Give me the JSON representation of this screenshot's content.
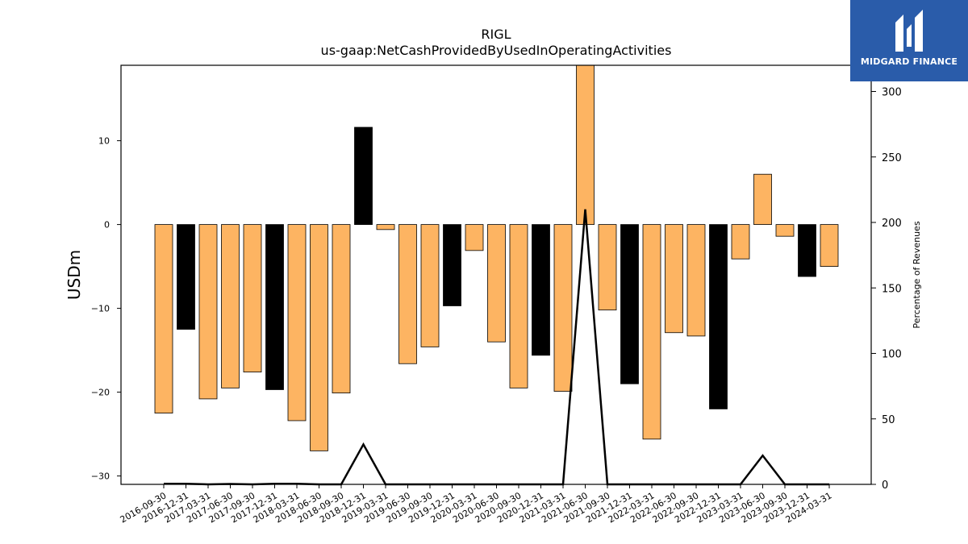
{
  "chart_data": {
    "type": "bar",
    "title": "RIGL",
    "subtitle": "us-gaap:NetCashProvidedByUsedInOperatingActivities",
    "ylabel": "USDm",
    "y2label": "Percentage of Revenues",
    "ylim": [
      -31,
      19
    ],
    "y2lim": [
      0,
      320
    ],
    "yticks": [
      -30,
      -20,
      -10,
      0,
      10
    ],
    "y2ticks": [
      0,
      50,
      100,
      150,
      200,
      250,
      300
    ],
    "categories": [
      "2016-09-30",
      "2016-12-31",
      "2017-03-31",
      "2017-06-30",
      "2017-09-30",
      "2017-12-31",
      "2018-03-31",
      "2018-06-30",
      "2018-09-30",
      "2018-12-31",
      "2019-03-31",
      "2019-06-30",
      "2019-09-30",
      "2019-12-31",
      "2020-03-31",
      "2020-06-30",
      "2020-09-30",
      "2020-12-31",
      "2021-03-31",
      "2021-06-30",
      "2021-09-30",
      "2021-12-31",
      "2022-03-31",
      "2022-06-30",
      "2022-09-30",
      "2022-12-31",
      "2023-03-31",
      "2023-06-30",
      "2023-09-30",
      "2023-12-31",
      "2024-03-31"
    ],
    "values": [
      -22.5,
      -12.5,
      -20.8,
      -19.5,
      -17.6,
      -19.7,
      -23.4,
      -27.0,
      -20.1,
      11.6,
      -0.6,
      -16.6,
      -14.6,
      -9.7,
      -3.1,
      -14.0,
      -19.5,
      -15.6,
      -19.9,
      19.5,
      -10.2,
      -19.0,
      -25.6,
      -12.9,
      -13.3,
      -22.0,
      -4.1,
      6.0,
      -1.4,
      -6.2,
      -5.0
    ],
    "bar_colors": [
      "#fdb462",
      "#000000",
      "#fdb462",
      "#fdb462",
      "#fdb462",
      "#000000",
      "#fdb462",
      "#fdb462",
      "#fdb462",
      "#000000",
      "#fdb462",
      "#fdb462",
      "#fdb462",
      "#000000",
      "#fdb462",
      "#fdb462",
      "#fdb462",
      "#000000",
      "#fdb462",
      "#fdb462",
      "#fdb462",
      "#000000",
      "#fdb462",
      "#fdb462",
      "#fdb462",
      "#000000",
      "#fdb462",
      "#fdb462",
      "#fdb462",
      "#000000",
      "#fdb462"
    ],
    "pct_of_revenues": [
      0.5,
      0.5,
      0,
      0.3,
      0,
      0.5,
      0.5,
      0,
      0,
      30.5,
      0,
      0,
      0,
      0,
      0,
      0,
      0,
      0,
      0,
      210,
      0,
      0,
      0,
      0,
      0,
      0,
      0,
      22,
      0,
      0,
      0
    ],
    "grid": false,
    "legend": "none"
  },
  "logo": {
    "text": "MIDGARD FINANCE"
  }
}
